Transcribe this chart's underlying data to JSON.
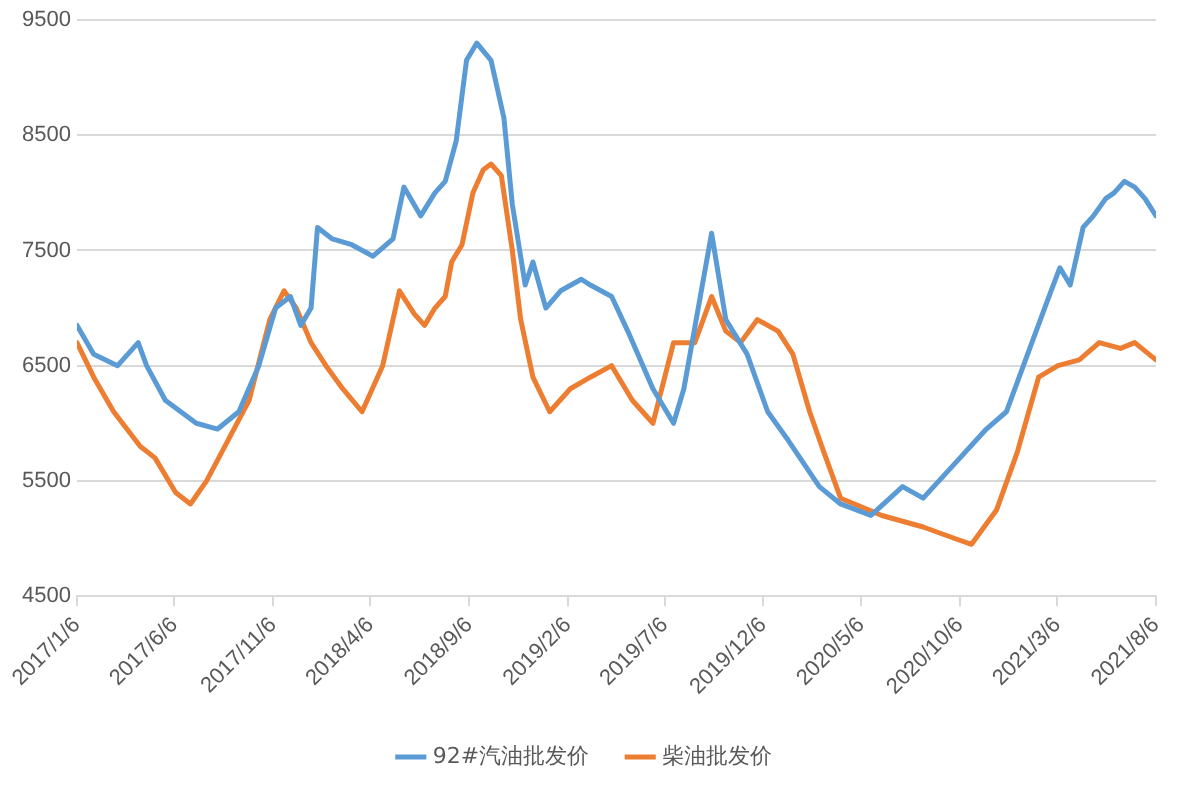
{
  "chart_data": {
    "type": "line",
    "series": [
      {
        "name": "92#汽油批发价",
        "color": "#5b9bd5",
        "x": [
          "2017-01-06",
          "2017-02-01",
          "2017-03-10",
          "2017-04-11",
          "2017-04-24",
          "2017-05-23",
          "2017-07-10",
          "2017-08-12",
          "2017-09-14",
          "2017-10-15",
          "2017-11-10",
          "2017-12-03",
          "2017-12-19",
          "2018-01-04",
          "2018-01-14",
          "2018-02-06",
          "2018-03-08",
          "2018-04-10",
          "2018-05-11",
          "2018-05-28",
          "2018-06-23",
          "2018-07-15",
          "2018-07-31",
          "2018-08-17",
          "2018-09-02",
          "2018-09-18",
          "2018-10-10",
          "2018-10-30",
          "2018-11-12",
          "2018-12-02",
          "2018-12-14",
          "2019-01-03",
          "2019-01-26",
          "2019-02-27",
          "2019-03-13",
          "2019-04-15",
          "2019-05-10",
          "2019-06-18",
          "2019-07-20",
          "2019-08-05",
          "2019-09-17",
          "2019-10-09",
          "2019-11-11",
          "2019-12-13",
          "2020-01-14",
          "2020-03-02",
          "2020-04-04",
          "2020-05-21",
          "2020-07-09",
          "2020-08-10",
          "2020-09-28",
          "2020-11-16",
          "2020-12-17",
          "2021-01-19",
          "2021-02-21",
          "2021-03-10",
          "2021-03-26",
          "2021-04-15",
          "2021-05-01",
          "2021-05-20",
          "2021-06-02",
          "2021-06-18",
          "2021-07-04",
          "2021-07-20",
          "2021-08-06"
        ],
        "values": [
          6850,
          6600,
          6500,
          6700,
          6500,
          6200,
          6000,
          5950,
          6100,
          6500,
          7000,
          7100,
          6850,
          7000,
          7700,
          7600,
          7550,
          7450,
          7600,
          8050,
          7800,
          8000,
          8100,
          8450,
          9150,
          9300,
          9150,
          8650,
          7900,
          7200,
          7400,
          7000,
          7150,
          7250,
          7200,
          7100,
          6800,
          6300,
          6000,
          6300,
          7650,
          6900,
          6600,
          6100,
          5850,
          5450,
          5300,
          5200,
          5450,
          5350,
          5650,
          5950,
          6100,
          6600,
          7100,
          7350,
          7200,
          7700,
          7800,
          7950,
          8000,
          8100,
          8050,
          7950,
          7800
        ]
      },
      {
        "name": "柴油批发价",
        "color": "#ed7d31",
        "x": [
          "2017-01-06",
          "2017-02-01",
          "2017-03-04",
          "2017-04-14",
          "2017-05-07",
          "2017-06-08",
          "2017-07-01",
          "2017-07-26",
          "2017-08-28",
          "2017-09-30",
          "2017-11-01",
          "2017-11-23",
          "2017-12-12",
          "2018-01-04",
          "2018-01-27",
          "2018-02-22",
          "2018-03-24",
          "2018-04-25",
          "2018-05-21",
          "2018-06-13",
          "2018-06-29",
          "2018-07-15",
          "2018-07-31",
          "2018-08-10",
          "2018-08-26",
          "2018-09-12",
          "2018-09-28",
          "2018-10-10",
          "2018-10-26",
          "2018-11-12",
          "2018-11-25",
          "2018-12-14",
          "2019-01-09",
          "2019-02-10",
          "2019-03-13",
          "2019-04-15",
          "2019-05-17",
          "2019-06-18",
          "2019-07-20",
          "2019-08-22",
          "2019-09-17",
          "2019-10-09",
          "2019-11-01",
          "2019-11-27",
          "2019-12-29",
          "2020-01-21",
          "2020-02-16",
          "2020-03-09",
          "2020-04-04",
          "2020-06-07",
          "2020-08-10",
          "2020-09-28",
          "2020-10-24",
          "2020-12-02",
          "2021-01-03",
          "2021-02-05",
          "2021-03-07",
          "2021-04-09",
          "2021-05-10",
          "2021-06-12",
          "2021-07-04",
          "2021-08-06"
        ],
        "values": [
          6700,
          6400,
          6100,
          5800,
          5700,
          5400,
          5300,
          5500,
          5850,
          6200,
          6900,
          7150,
          7000,
          6700,
          6500,
          6300,
          6100,
          6500,
          7150,
          6950,
          6850,
          7000,
          7100,
          7400,
          7550,
          8000,
          8200,
          8250,
          8150,
          7500,
          6900,
          6400,
          6100,
          6300,
          6400,
          6500,
          6200,
          6000,
          6700,
          6700,
          7100,
          6800,
          6700,
          6900,
          6800,
          6600,
          6100,
          5750,
          5350,
          5200,
          5100,
          5000,
          4950,
          5250,
          5750,
          6400,
          6500,
          6550,
          6700,
          6650,
          6700,
          6550
        ]
      }
    ],
    "xlim": [
      "2017-01-06",
      "2021-08-06"
    ],
    "xticks": [
      {
        "value": "2017-01-06",
        "label": "2017/1/6"
      },
      {
        "value": "2017-06-06",
        "label": "2017/6/6"
      },
      {
        "value": "2017-11-06",
        "label": "2017/11/6"
      },
      {
        "value": "2018-04-06",
        "label": "2018/4/6"
      },
      {
        "value": "2018-09-06",
        "label": "2018/9/6"
      },
      {
        "value": "2019-02-06",
        "label": "2019/2/6"
      },
      {
        "value": "2019-07-06",
        "label": "2019/7/6"
      },
      {
        "value": "2019-12-06",
        "label": "2019/12/6"
      },
      {
        "value": "2020-05-06",
        "label": "2020/5/6"
      },
      {
        "value": "2020-10-06",
        "label": "2020/10/6"
      },
      {
        "value": "2021-03-06",
        "label": "2021/3/6"
      },
      {
        "value": "2021-08-06",
        "label": "2021/8/6"
      }
    ],
    "ylim": [
      4500,
      9500
    ],
    "yticks": [
      4500,
      5500,
      6500,
      7500,
      8500,
      9500
    ],
    "grid": "y",
    "legend": "bottom",
    "marker": "none",
    "line_style": "solid"
  }
}
